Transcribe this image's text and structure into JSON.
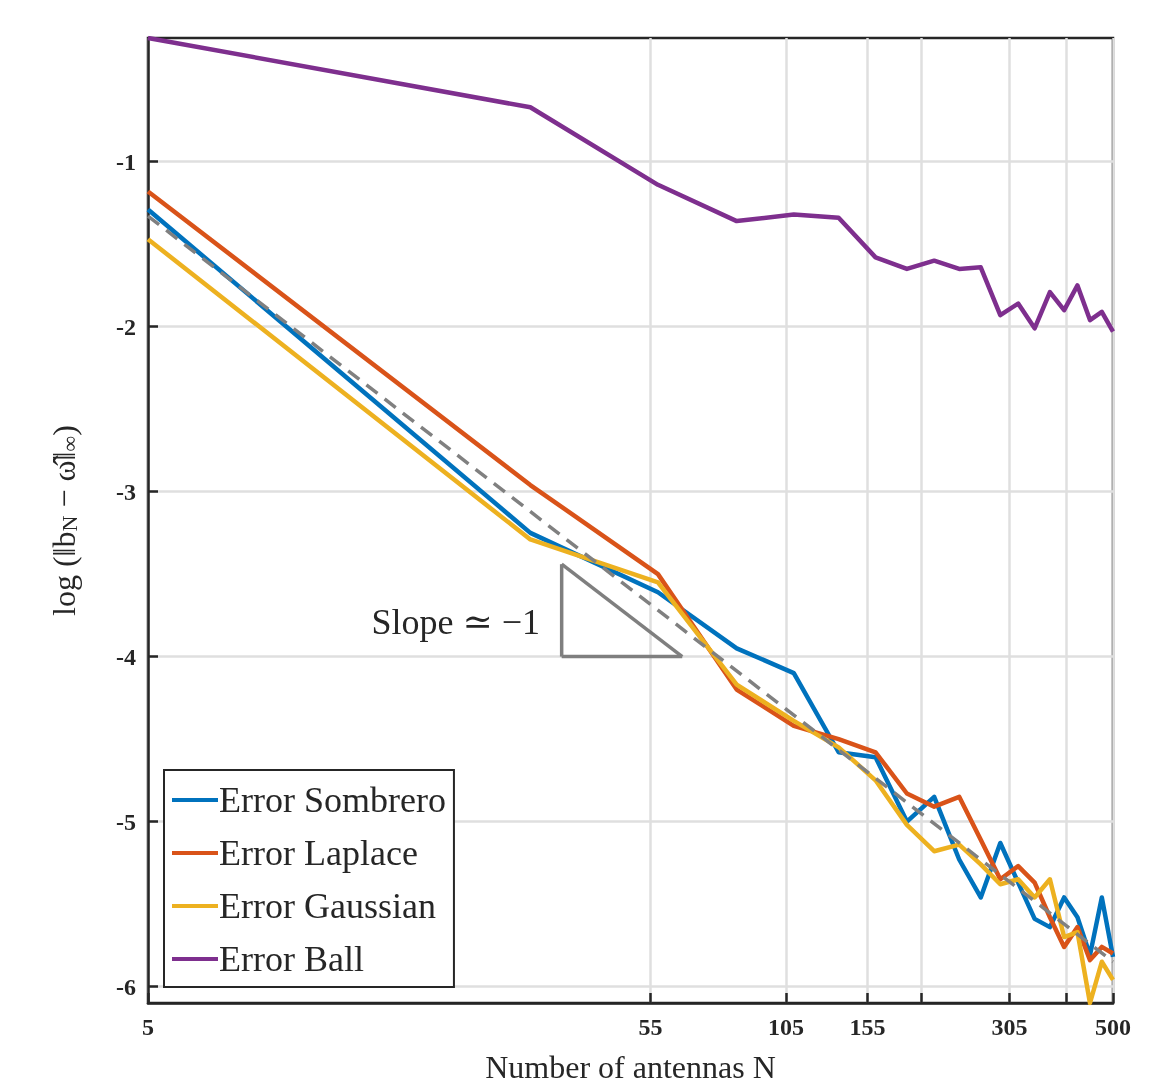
{
  "chart_data": {
    "type": "line",
    "xlabel": "Number of antennas N",
    "ylabel": "log (‖b$_{N}$ − ω̂‖$_{∞}$)",
    "x": [
      5,
      31,
      57,
      83,
      109,
      135,
      161,
      187,
      213,
      240,
      266,
      292,
      318,
      344,
      370,
      396,
      422,
      448,
      474,
      500
    ],
    "series": [
      {
        "name": "Error Sombrero",
        "color": "#0072bd",
        "values": [
          -1.29,
          -3.25,
          -3.61,
          -3.95,
          -4.1,
          -4.58,
          -4.61,
          -5.0,
          -4.85,
          -5.23,
          -5.46,
          -5.13,
          -5.37,
          -5.59,
          -5.64,
          -5.46,
          -5.58,
          -5.81,
          -5.46,
          -5.82
        ]
      },
      {
        "name": "Error Laplace",
        "color": "#d95319",
        "values": [
          -1.18,
          -2.96,
          -3.5,
          -4.2,
          -4.42,
          -4.5,
          -4.58,
          -4.83,
          -4.91,
          -4.85,
          -5.11,
          -5.35,
          -5.27,
          -5.37,
          -5.58,
          -5.76,
          -5.64,
          -5.84,
          -5.76,
          -5.8
        ]
      },
      {
        "name": "Error Gaussian",
        "color": "#edb120",
        "values": [
          -1.47,
          -3.29,
          -3.55,
          -4.17,
          -4.39,
          -4.55,
          -4.75,
          -5.02,
          -5.18,
          -5.14,
          -5.26,
          -5.38,
          -5.35,
          -5.46,
          -5.35,
          -5.7,
          -5.67,
          -6.1,
          -5.85,
          -5.96
        ]
      },
      {
        "name": "Error Ball",
        "color": "#7e2f8e",
        "values": [
          -0.25,
          -0.67,
          -1.14,
          -1.36,
          -1.32,
          -1.34,
          -1.58,
          -1.65,
          -1.6,
          -1.65,
          -1.64,
          -1.93,
          -1.86,
          -2.01,
          -1.79,
          -1.9,
          -1.75,
          -1.96,
          -1.91,
          -2.03
        ]
      },
      {
        "color": "#808080",
        "line_style": "dashed",
        "x": [
          5,
          500
        ],
        "values": [
          -1.33,
          -5.85
        ]
      },
      {
        "color": "#7f7f7f",
        "line_style": "solid",
        "x": [
          36,
          64
        ],
        "values": [
          -3.44,
          -4.0
        ]
      },
      {
        "color": "#7f7f7f",
        "line_style": "solid",
        "x": [
          36,
          64
        ],
        "values": [
          -4.0,
          -4.0
        ]
      },
      {
        "color": "#7f7f7f",
        "line_style": "solid",
        "x": [
          36,
          36
        ],
        "values": [
          -3.44,
          -4.0
        ]
      }
    ],
    "annotations": [
      "Slope ≃ −1"
    ],
    "log": "x",
    "xlim": [
      5,
      500
    ],
    "xticks": [
      5,
      55,
      105,
      155,
      {
        "value": 200,
        "label": null
      },
      305,
      {
        "value": 400,
        "label": null
      },
      500
    ],
    "ylim": [
      -6.1,
      -0.25
    ],
    "yticks": [
      -6,
      -5,
      -4,
      -3,
      -2,
      -1
    ],
    "grid": true,
    "legend": "bottom left",
    "marker": "none",
    "line_style": "solid"
  }
}
